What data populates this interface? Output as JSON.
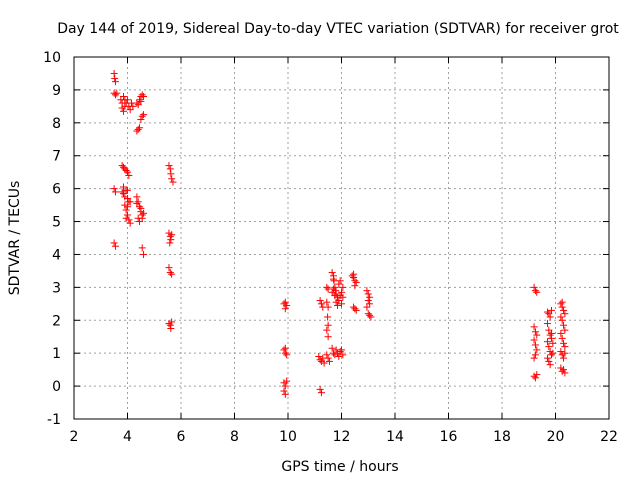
{
  "chart_data": {
    "type": "scatter",
    "title": "Day 144 of 2019, Sidereal Day-to-day VTEC variation (SDTVAR) for receiver grot",
    "xlabel": "GPS time / hours",
    "ylabel": "SDTVAR / TECUs",
    "xlim": [
      2,
      22
    ],
    "ylim": [
      -1,
      10
    ],
    "xticks": [
      2,
      4,
      6,
      8,
      10,
      12,
      14,
      16,
      18,
      20,
      22
    ],
    "yticks": [
      -1,
      0,
      1,
      2,
      3,
      4,
      5,
      6,
      7,
      8,
      9,
      10
    ],
    "grid": true,
    "marker": "plus",
    "color": "#ff0000",
    "series": [
      {
        "name": "SDTVAR",
        "points": [
          [
            3.5,
            9.5
          ],
          [
            3.52,
            9.35
          ],
          [
            3.55,
            9.25
          ],
          [
            3.5,
            8.9
          ],
          [
            3.55,
            8.85
          ],
          [
            3.6,
            8.9
          ],
          [
            3.5,
            6.0
          ],
          [
            3.55,
            5.9
          ],
          [
            3.5,
            4.35
          ],
          [
            3.55,
            4.25
          ],
          [
            3.75,
            8.7
          ],
          [
            3.8,
            8.6
          ],
          [
            3.8,
            8.45
          ],
          [
            3.85,
            8.35
          ],
          [
            3.9,
            8.5
          ],
          [
            3.95,
            8.6
          ],
          [
            4.0,
            8.7
          ],
          [
            4.05,
            8.5
          ],
          [
            4.1,
            8.4
          ],
          [
            4.15,
            8.6
          ],
          [
            4.2,
            8.5
          ],
          [
            3.85,
            8.8
          ],
          [
            3.9,
            8.7
          ],
          [
            3.85,
            6.65
          ],
          [
            3.9,
            6.6
          ],
          [
            3.95,
            6.55
          ],
          [
            4.0,
            6.5
          ],
          [
            4.05,
            6.4
          ],
          [
            3.8,
            6.7
          ],
          [
            3.8,
            5.9
          ],
          [
            3.85,
            5.85
          ],
          [
            3.9,
            5.75
          ],
          [
            3.95,
            5.95
          ],
          [
            4.0,
            5.7
          ],
          [
            4.05,
            5.6
          ],
          [
            3.9,
            5.5
          ],
          [
            3.95,
            5.35
          ],
          [
            4.0,
            5.2
          ],
          [
            4.05,
            5.05
          ],
          [
            4.1,
            4.95
          ],
          [
            3.95,
            5.1
          ],
          [
            4.0,
            5.45
          ],
          [
            4.1,
            5.6
          ],
          [
            3.85,
            6.05
          ],
          [
            4.0,
            5.95
          ],
          [
            4.35,
            8.6
          ],
          [
            4.4,
            8.55
          ],
          [
            4.45,
            8.7
          ],
          [
            4.5,
            8.8
          ],
          [
            4.55,
            8.85
          ],
          [
            4.6,
            8.8
          ],
          [
            4.5,
            8.65
          ],
          [
            4.35,
            7.75
          ],
          [
            4.4,
            7.8
          ],
          [
            4.45,
            7.85
          ],
          [
            4.5,
            8.1
          ],
          [
            4.55,
            8.2
          ],
          [
            4.6,
            8.25
          ],
          [
            4.35,
            5.75
          ],
          [
            4.4,
            5.6
          ],
          [
            4.45,
            5.45
          ],
          [
            4.5,
            5.3
          ],
          [
            4.55,
            5.2
          ],
          [
            4.6,
            5.25
          ],
          [
            4.4,
            5.1
          ],
          [
            4.45,
            5.0
          ],
          [
            4.5,
            5.4
          ],
          [
            4.55,
            5.1
          ],
          [
            4.35,
            5.55
          ],
          [
            4.55,
            4.2
          ],
          [
            4.6,
            4.0
          ],
          [
            5.55,
            6.7
          ],
          [
            5.6,
            6.6
          ],
          [
            5.62,
            6.45
          ],
          [
            5.65,
            6.3
          ],
          [
            5.7,
            6.2
          ],
          [
            5.55,
            4.65
          ],
          [
            5.6,
            4.55
          ],
          [
            5.62,
            4.45
          ],
          [
            5.65,
            4.6
          ],
          [
            5.58,
            4.35
          ],
          [
            5.55,
            3.6
          ],
          [
            5.6,
            3.45
          ],
          [
            5.65,
            3.4
          ],
          [
            5.55,
            1.9
          ],
          [
            5.6,
            1.85
          ],
          [
            5.62,
            1.75
          ],
          [
            5.65,
            1.95
          ],
          [
            9.85,
            2.5
          ],
          [
            9.9,
            2.55
          ],
          [
            9.95,
            2.45
          ],
          [
            9.9,
            2.35
          ],
          [
            9.85,
            1.1
          ],
          [
            9.9,
            1.0
          ],
          [
            9.95,
            0.95
          ],
          [
            9.9,
            1.15
          ],
          [
            9.85,
            0.1
          ],
          [
            9.9,
            0.0
          ],
          [
            9.95,
            0.15
          ],
          [
            9.85,
            -0.15
          ],
          [
            9.9,
            -0.25
          ],
          [
            11.2,
            2.6
          ],
          [
            11.25,
            2.5
          ],
          [
            11.3,
            2.4
          ],
          [
            11.15,
            0.9
          ],
          [
            11.2,
            0.8
          ],
          [
            11.25,
            0.75
          ],
          [
            11.3,
            0.85
          ],
          [
            11.35,
            0.7
          ],
          [
            11.2,
            -0.1
          ],
          [
            11.25,
            -0.2
          ],
          [
            11.45,
            3.0
          ],
          [
            11.5,
            2.95
          ],
          [
            11.45,
            2.55
          ],
          [
            11.5,
            2.4
          ],
          [
            11.48,
            2.1
          ],
          [
            11.5,
            1.85
          ],
          [
            11.45,
            1.7
          ],
          [
            11.5,
            1.5
          ],
          [
            11.45,
            0.95
          ],
          [
            11.5,
            0.85
          ],
          [
            11.55,
            0.75
          ],
          [
            11.65,
            3.45
          ],
          [
            11.7,
            3.35
          ],
          [
            11.72,
            3.2
          ],
          [
            11.75,
            3.0
          ],
          [
            11.78,
            2.9
          ],
          [
            11.8,
            2.8
          ],
          [
            11.85,
            2.7
          ],
          [
            11.9,
            2.6
          ],
          [
            11.95,
            2.75
          ],
          [
            12.0,
            2.85
          ],
          [
            12.05,
            3.0
          ],
          [
            11.7,
            2.95
          ],
          [
            11.75,
            2.75
          ],
          [
            11.8,
            2.55
          ],
          [
            11.85,
            2.45
          ],
          [
            11.9,
            3.1
          ],
          [
            11.95,
            3.2
          ],
          [
            12.0,
            2.5
          ],
          [
            11.7,
            3.25
          ],
          [
            11.65,
            2.85
          ],
          [
            12.05,
            2.7
          ],
          [
            11.65,
            1.15
          ],
          [
            11.7,
            1.0
          ],
          [
            11.75,
            0.95
          ],
          [
            11.8,
            1.1
          ],
          [
            11.85,
            1.0
          ],
          [
            11.9,
            0.9
          ],
          [
            11.95,
            1.05
          ],
          [
            12.0,
            1.1
          ],
          [
            12.05,
            0.95
          ],
          [
            12.4,
            3.35
          ],
          [
            12.45,
            3.3
          ],
          [
            12.5,
            3.2
          ],
          [
            12.55,
            3.15
          ],
          [
            12.45,
            3.4
          ],
          [
            12.5,
            3.05
          ],
          [
            12.45,
            2.4
          ],
          [
            12.5,
            2.35
          ],
          [
            12.55,
            2.3
          ],
          [
            12.95,
            2.9
          ],
          [
            13.0,
            2.8
          ],
          [
            13.05,
            2.7
          ],
          [
            13.0,
            2.6
          ],
          [
            13.05,
            2.5
          ],
          [
            12.95,
            2.4
          ],
          [
            13.0,
            2.2
          ],
          [
            13.05,
            2.15
          ],
          [
            13.1,
            2.1
          ],
          [
            19.2,
            3.0
          ],
          [
            19.25,
            2.9
          ],
          [
            19.3,
            2.85
          ],
          [
            19.2,
            1.8
          ],
          [
            19.25,
            1.65
          ],
          [
            19.3,
            1.55
          ],
          [
            19.2,
            1.4
          ],
          [
            19.25,
            1.25
          ],
          [
            19.3,
            1.1
          ],
          [
            19.25,
            0.95
          ],
          [
            19.2,
            0.85
          ],
          [
            19.2,
            0.3
          ],
          [
            19.25,
            0.25
          ],
          [
            19.3,
            0.35
          ],
          [
            19.7,
            2.25
          ],
          [
            19.75,
            2.2
          ],
          [
            19.8,
            2.1
          ],
          [
            19.85,
            2.3
          ],
          [
            19.7,
            1.9
          ],
          [
            19.75,
            1.7
          ],
          [
            19.8,
            1.55
          ],
          [
            19.85,
            1.45
          ],
          [
            19.7,
            1.35
          ],
          [
            19.75,
            1.2
          ],
          [
            19.8,
            1.05
          ],
          [
            19.85,
            0.95
          ],
          [
            19.7,
            0.85
          ],
          [
            19.75,
            0.75
          ],
          [
            19.8,
            0.65
          ],
          [
            19.85,
            1.6
          ],
          [
            19.9,
            1.3
          ],
          [
            19.9,
            1.0
          ],
          [
            20.2,
            2.5
          ],
          [
            20.25,
            2.4
          ],
          [
            20.3,
            2.3
          ],
          [
            20.35,
            2.2
          ],
          [
            20.2,
            2.1
          ],
          [
            20.25,
            2.0
          ],
          [
            20.3,
            1.85
          ],
          [
            20.35,
            1.7
          ],
          [
            20.2,
            1.6
          ],
          [
            20.25,
            1.45
          ],
          [
            20.3,
            1.3
          ],
          [
            20.35,
            1.2
          ],
          [
            20.2,
            1.05
          ],
          [
            20.25,
            0.95
          ],
          [
            20.3,
            0.85
          ],
          [
            20.35,
            1.0
          ],
          [
            20.2,
            0.55
          ],
          [
            20.25,
            0.45
          ],
          [
            20.3,
            0.5
          ],
          [
            20.35,
            0.4
          ],
          [
            20.25,
            2.55
          ]
        ]
      }
    ]
  }
}
